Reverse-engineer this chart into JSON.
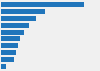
{
  "values": [
    1100,
    580,
    460,
    370,
    300,
    255,
    225,
    200,
    170,
    65
  ],
  "bar_color": "#2075bb",
  "background_color": "#f0f0f0",
  "right_bg_color": "#e8e8e8",
  "grid_color": "#ffffff",
  "xlim": [
    0,
    1300
  ]
}
